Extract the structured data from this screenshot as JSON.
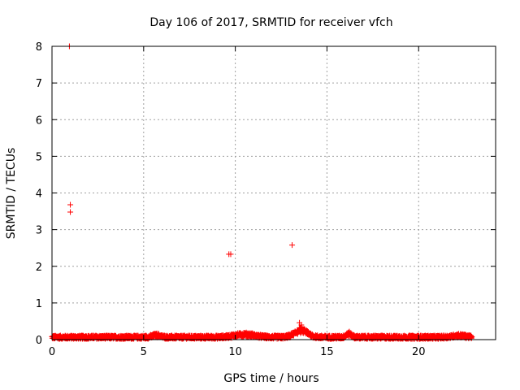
{
  "chart_data": {
    "type": "scatter",
    "title": "Day 106 of 2017, SRMTID for receiver vfch",
    "xlabel": "GPS time / hours",
    "ylabel": "SRMTID / TECUs",
    "xlim": [
      0,
      24.2
    ],
    "ylim": [
      0,
      8
    ],
    "xticks": [
      0,
      5,
      10,
      15,
      20
    ],
    "yticks": [
      0,
      1,
      2,
      3,
      4,
      5,
      6,
      7,
      8
    ],
    "grid": true,
    "marker": "+",
    "series_color": "#ff0000",
    "series": [
      {
        "name": "SRMTID",
        "outliers": {
          "x": [
            0.95,
            1.0,
            1.0,
            9.65,
            9.75,
            13.1,
            13.5,
            13.6
          ],
          "y": [
            8.0,
            3.68,
            3.48,
            2.33,
            2.33,
            2.58,
            0.46,
            0.4
          ]
        },
        "baseline": {
          "x_start": 0.0,
          "x_end": 22.9,
          "x_step": 0.02,
          "typical_range": [
            0.02,
            0.15
          ],
          "bumps": [
            {
              "center": 5.7,
              "width": 0.3,
              "height": 0.06
            },
            {
              "center": 10.5,
              "width": 0.8,
              "height": 0.08
            },
            {
              "center": 13.6,
              "width": 0.5,
              "height": 0.2
            },
            {
              "center": 16.2,
              "width": 0.2,
              "height": 0.1
            },
            {
              "center": 22.2,
              "width": 0.5,
              "height": 0.05
            }
          ]
        }
      }
    ]
  }
}
